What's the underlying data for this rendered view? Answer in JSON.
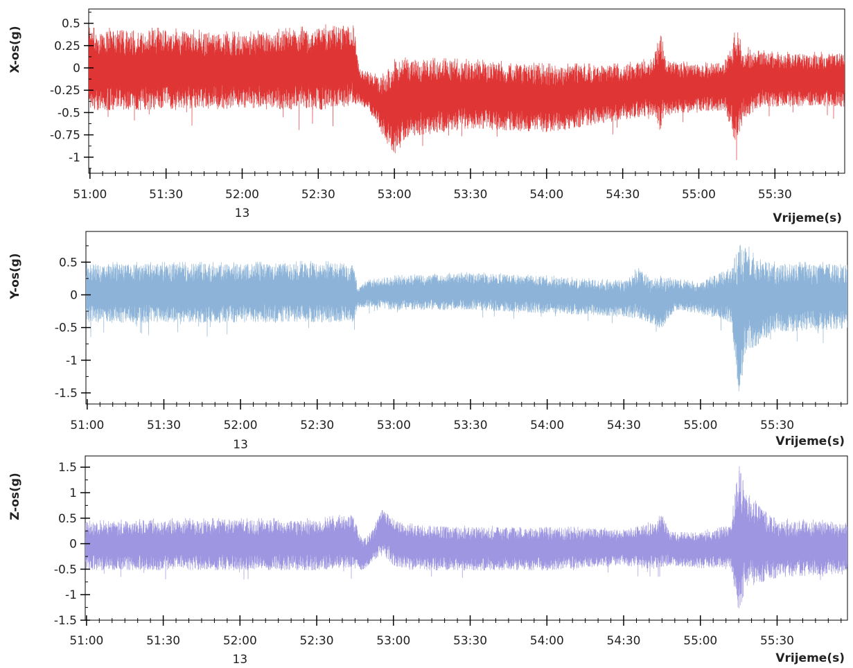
{
  "chart_data": [
    {
      "type": "line",
      "series": [
        {
          "color": "#e03535"
        }
      ],
      "ylabel": "X-os(g)",
      "xlabel": "Vrijeme(s)",
      "x_range": [
        "50:59.5",
        "55:57.5"
      ],
      "ylim": [
        -1.18,
        0.66
      ],
      "yticks": [
        0.5,
        0.25,
        0,
        -0.25,
        -0.5,
        -0.75,
        -1
      ],
      "ytick_labels": [
        "0.5",
        "0.25",
        "0",
        "-0.25",
        "-0.5",
        "-0.75",
        "-1"
      ],
      "xtick_labels": [
        "51:00",
        "51:30",
        "52:00",
        "52:30",
        "53:00",
        "53:30",
        "54:00",
        "54:30",
        "55:00",
        "55:30"
      ],
      "xtick_times": [
        "51:00",
        "51:30",
        "52:00",
        "52:30",
        "53:00",
        "53:30",
        "54:00",
        "54:30",
        "55:00",
        "55:30"
      ],
      "sublabel": "13",
      "envelope": {
        "t": [
          "50:59.5",
          "51:30",
          "52:00",
          "52:30",
          "52:44",
          "52:46",
          "52:50",
          "52:55",
          "53:00",
          "53:05",
          "53:30",
          "54:00",
          "54:30",
          "54:42",
          "54:45",
          "54:47",
          "55:00",
          "55:10",
          "55:13",
          "55:15",
          "55:17",
          "55:25",
          "55:30",
          "55:50",
          "55:57.5"
        ],
        "upper": [
          0.45,
          0.45,
          0.4,
          0.48,
          0.52,
          0.02,
          -0.05,
          -0.08,
          0.1,
          0.12,
          0.1,
          0.05,
          0.05,
          0.12,
          0.45,
          0.1,
          0.05,
          0.1,
          0.25,
          0.6,
          0.25,
          0.2,
          0.18,
          0.18,
          0.2
        ],
        "lower": [
          -0.5,
          -0.5,
          -0.48,
          -0.5,
          -0.45,
          -0.4,
          -0.5,
          -0.75,
          -1.02,
          -0.8,
          -0.7,
          -0.75,
          -0.6,
          -0.55,
          -0.75,
          -0.55,
          -0.5,
          -0.5,
          -0.7,
          -1.12,
          -0.6,
          -0.45,
          -0.45,
          -0.45,
          -0.45
        ]
      }
    },
    {
      "type": "line",
      "series": [
        {
          "color": "#8db4d8"
        }
      ],
      "ylabel": "Y-os(g)",
      "xlabel": "Vrijeme(s)",
      "x_range": [
        "50:59.5",
        "55:57.5"
      ],
      "ylim": [
        -1.67,
        0.97
      ],
      "yticks": [
        0.5,
        0,
        -0.5,
        -1,
        -1.5
      ],
      "ytick_labels": [
        "0.5",
        "0",
        "-0.5",
        "-1",
        "-1.5"
      ],
      "xtick_labels": [
        "51:00",
        "51:30",
        "52:00",
        "52:30",
        "53:00",
        "53:30",
        "54:00",
        "54:30",
        "55:00",
        "55:30"
      ],
      "xtick_times": [
        "51:00",
        "51:30",
        "52:00",
        "52:30",
        "53:00",
        "53:30",
        "54:00",
        "54:30",
        "55:00",
        "55:30"
      ],
      "sublabel": "13",
      "envelope": {
        "t": [
          "50:59.5",
          "51:30",
          "52:00",
          "52:30",
          "52:44",
          "52:46",
          "52:50",
          "53:00",
          "53:30",
          "54:00",
          "54:30",
          "54:36",
          "54:40",
          "54:45",
          "54:50",
          "55:00",
          "55:12",
          "55:15",
          "55:17",
          "55:25",
          "55:30",
          "55:57.5"
        ],
        "upper": [
          0.5,
          0.5,
          0.5,
          0.52,
          0.5,
          0.1,
          0.25,
          0.3,
          0.35,
          0.3,
          0.22,
          0.45,
          0.25,
          0.3,
          0.25,
          0.2,
          0.45,
          0.88,
          0.8,
          0.55,
          0.5,
          0.5
        ],
        "lower": [
          -0.45,
          -0.45,
          -0.45,
          -0.45,
          -0.45,
          -0.2,
          -0.2,
          -0.25,
          -0.25,
          -0.3,
          -0.35,
          -0.4,
          -0.45,
          -0.55,
          -0.25,
          -0.3,
          -0.45,
          -1.62,
          -1.0,
          -0.7,
          -0.6,
          -0.55
        ]
      }
    },
    {
      "type": "line",
      "series": [
        {
          "color": "#9e96e0"
        }
      ],
      "ylabel": "Z-os(g)",
      "xlabel": "Vrijeme(s)",
      "x_range": [
        "50:59.5",
        "55:57.5"
      ],
      "ylim": [
        -1.5,
        1.72
      ],
      "yticks": [
        1.5,
        1,
        0.5,
        0,
        -0.5,
        -1,
        -1.5
      ],
      "ytick_labels": [
        "1.5",
        "1",
        "0.5",
        "0",
        "-0.5",
        "-1",
        "-1.5"
      ],
      "xtick_labels": [
        "51:00",
        "51:30",
        "52:00",
        "52:30",
        "53:00",
        "53:30",
        "54:00",
        "54:30",
        "55:00",
        "55:30"
      ],
      "xtick_times": [
        "51:00",
        "51:30",
        "52:00",
        "52:30",
        "53:00",
        "53:30",
        "54:00",
        "54:30",
        "55:00",
        "55:30"
      ],
      "sublabel": "13",
      "envelope": {
        "t": [
          "50:59.5",
          "51:30",
          "52:00",
          "52:30",
          "52:44",
          "52:48",
          "52:52",
          "52:56",
          "53:00",
          "53:05",
          "53:30",
          "54:00",
          "54:30",
          "54:42",
          "54:45",
          "54:48",
          "55:00",
          "55:12",
          "55:15",
          "55:18",
          "55:25",
          "55:30",
          "55:57.5"
        ],
        "upper": [
          0.45,
          0.5,
          0.5,
          0.5,
          0.6,
          0.1,
          0.3,
          0.75,
          0.5,
          0.4,
          0.35,
          0.35,
          0.3,
          0.45,
          0.65,
          0.25,
          0.25,
          0.4,
          1.7,
          1.0,
          0.7,
          0.5,
          0.45
        ],
        "lower": [
          -0.55,
          -0.55,
          -0.55,
          -0.55,
          -0.5,
          -0.55,
          -0.35,
          -0.25,
          -0.45,
          -0.55,
          -0.55,
          -0.55,
          -0.45,
          -0.55,
          -0.5,
          -0.45,
          -0.5,
          -0.5,
          -1.45,
          -0.9,
          -0.8,
          -0.7,
          -0.6
        ]
      }
    }
  ]
}
